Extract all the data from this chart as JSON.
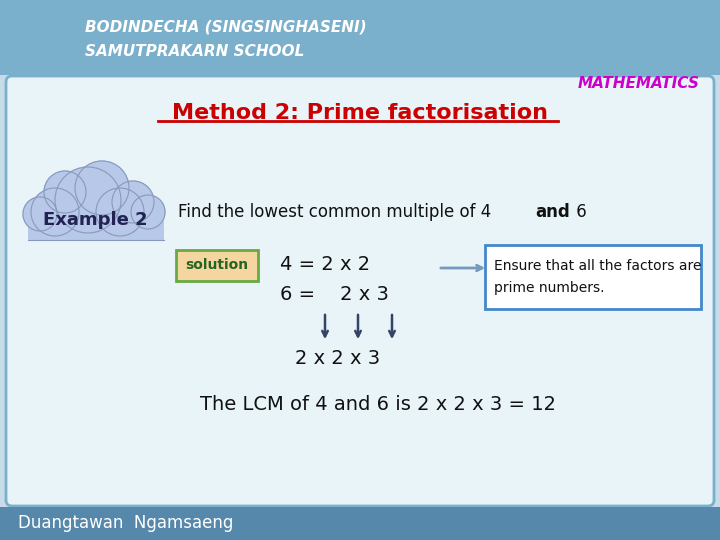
{
  "bg_color": "#c8dce8",
  "header_bg": "#7ab0cc",
  "header_text1": "BODINDECHA (SINGSINGHASENI)",
  "header_text2": "SAMUTPRAKARN SCHOOL",
  "header_text_color": "#ffffff",
  "math_label": "MATHEMATICS",
  "math_label_color": "#cc00cc",
  "main_bg": "#e8f4f8",
  "main_border_color": "#7ab0cc",
  "method_title": "Method 2: Prime factorisation",
  "method_title_color": "#cc0000",
  "example_label": "Example 2",
  "example_cloud_color": "#b8c8e8",
  "example_cloud_edge": "#8899bb",
  "solution_label": "solution",
  "solution_bg": "#f5d5a0",
  "solution_border": "#66aa44",
  "eq1": "4 = 2 x 2",
  "eq2": "6 =    2 x 3",
  "eq3": "2 x 2 x 3",
  "lcm_text": "The LCM of 4 and 6 is 2 x 2 x 3 = 12",
  "note_text1": "Ensure that all the factors are",
  "note_text2": "prime numbers.",
  "note_border": "#4488cc",
  "footer_bg": "#5588aa",
  "footer_text": "Duangtawan  Ngamsaeng",
  "footer_text_color": "#ffffff"
}
